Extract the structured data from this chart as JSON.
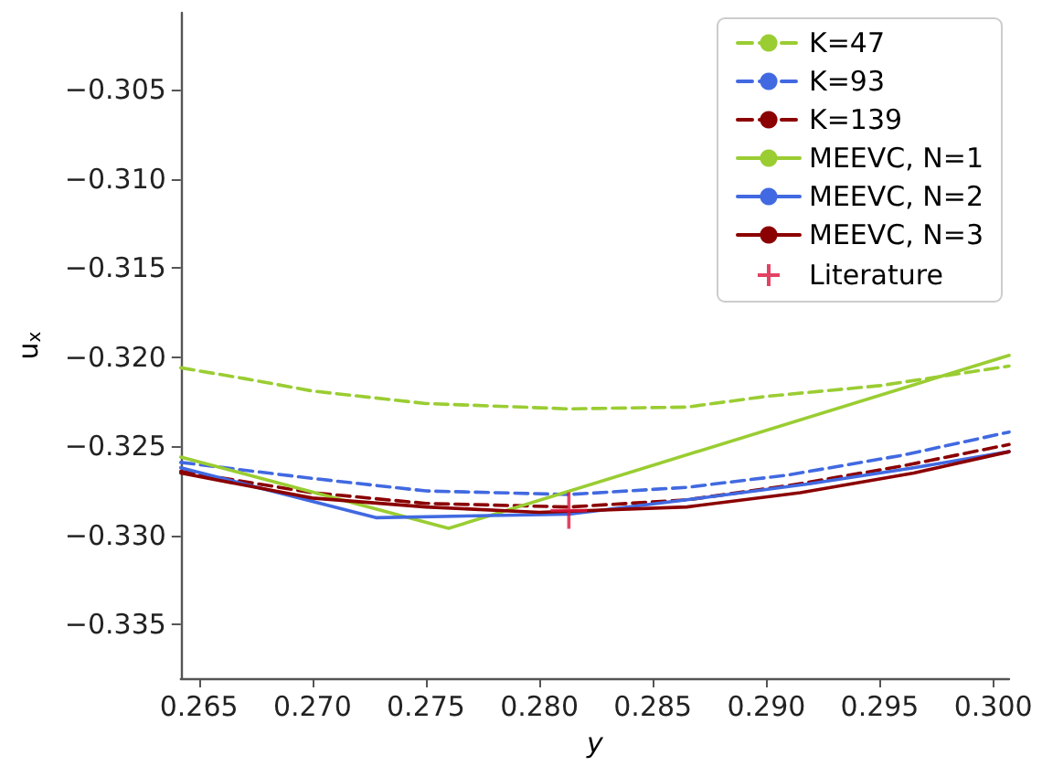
{
  "chart_data": {
    "type": "line",
    "xlabel": "y",
    "ylabel": "u$_{x}$",
    "xlim": [
      0.2642,
      0.3007
    ],
    "ylim": [
      -0.338,
      -0.3007
    ],
    "xticks": [
      {
        "value": 0.265,
        "label": "0.265"
      },
      {
        "value": 0.27,
        "label": "0.270"
      },
      {
        "value": 0.275,
        "label": "0.275"
      },
      {
        "value": 0.28,
        "label": "0.280"
      },
      {
        "value": 0.285,
        "label": "0.285"
      },
      {
        "value": 0.29,
        "label": "0.290"
      },
      {
        "value": 0.295,
        "label": "0.295"
      },
      {
        "value": 0.3,
        "label": "0.300"
      }
    ],
    "yticks": [
      {
        "value": -0.335,
        "label": "−0.335"
      },
      {
        "value": -0.33,
        "label": "−0.330"
      },
      {
        "value": -0.325,
        "label": "−0.325"
      },
      {
        "value": -0.32,
        "label": "−0.320"
      },
      {
        "value": -0.315,
        "label": "−0.315"
      },
      {
        "value": -0.31,
        "label": "−0.310"
      },
      {
        "value": -0.305,
        "label": "−0.305"
      }
    ],
    "grid": false,
    "legend": "top right",
    "marker": "none",
    "series": [
      {
        "name": "K=47",
        "color": "#9acd32",
        "line_style": "dashed",
        "x": [
          0.2642,
          0.267,
          0.27,
          0.275,
          0.2813,
          0.2865,
          0.29,
          0.295,
          0.3007
        ],
        "values": [
          -0.3206,
          -0.3212,
          -0.3219,
          -0.3226,
          -0.3229,
          -0.3228,
          -0.3222,
          -0.3216,
          -0.3205
        ]
      },
      {
        "name": "K=93",
        "color": "#4169e1",
        "line_style": "dashed",
        "x": [
          0.2642,
          0.27,
          0.275,
          0.2813,
          0.2865,
          0.291,
          0.296,
          0.3007
        ],
        "values": [
          -0.3259,
          -0.3268,
          -0.3275,
          -0.3277,
          -0.3273,
          -0.3266,
          -0.3255,
          -0.3242
        ]
      },
      {
        "name": "K=139",
        "color": "#8b0000",
        "line_style": "dashed",
        "x": [
          0.2642,
          0.27,
          0.275,
          0.2813,
          0.2865,
          0.291,
          0.296,
          0.3007
        ],
        "values": [
          -0.3264,
          -0.3276,
          -0.3282,
          -0.3284,
          -0.328,
          -0.3272,
          -0.3261,
          -0.3249
        ]
      },
      {
        "name": "MEEVC, N=1",
        "color": "#9acd32",
        "line_style": "solid",
        "x": [
          0.2642,
          0.276,
          0.3007
        ],
        "values": [
          -0.3256,
          -0.3296,
          -0.3199
        ]
      },
      {
        "name": "MEEVC, N=2",
        "color": "#4169e1",
        "line_style": "solid",
        "x": [
          0.2642,
          0.2728,
          0.2813,
          0.2865,
          0.2919,
          0.2965,
          0.3007
        ],
        "values": [
          -0.3262,
          -0.329,
          -0.3288,
          -0.328,
          -0.3271,
          -0.3262,
          -0.3253
        ]
      },
      {
        "name": "MEEVC, N=3",
        "color": "#8b0000",
        "line_style": "solid",
        "x": [
          0.2642,
          0.27,
          0.275,
          0.28,
          0.2865,
          0.2915,
          0.2965,
          0.3007
        ],
        "values": [
          -0.3265,
          -0.3279,
          -0.3284,
          -0.3287,
          -0.3284,
          -0.3276,
          -0.3265,
          -0.3253
        ]
      },
      {
        "name": "Literature",
        "type": "scatter",
        "marker": "cross",
        "color": "#dc143c",
        "x": [
          0.2813
        ],
        "values": [
          -0.3286
        ]
      }
    ]
  }
}
